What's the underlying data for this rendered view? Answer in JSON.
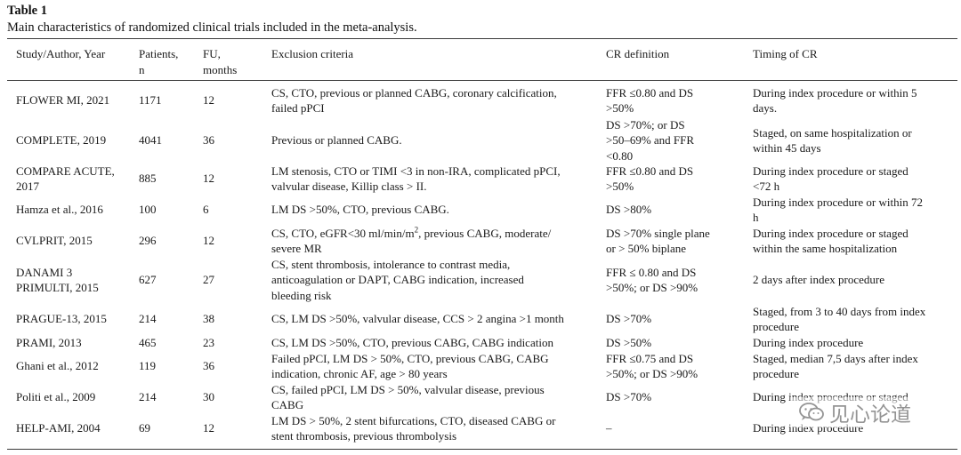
{
  "table": {
    "label": "Table 1",
    "caption": "Main characteristics of randomized clinical trials included in the meta-analysis.",
    "headers": {
      "study": "Study/Author, Year",
      "patients": [
        "Patients,",
        "n"
      ],
      "fu": [
        "FU,",
        "months"
      ],
      "exclusion": "Exclusion criteria",
      "cr_definition": "CR definition",
      "timing": "Timing of CR"
    },
    "rows": [
      {
        "study": [
          "FLOWER MI, 2021"
        ],
        "patients": "1171",
        "fu": "12",
        "exclusion": [
          "CS, CTO, previous or planned CABG, coronary calcification,",
          "failed pPCI"
        ],
        "cr": [
          "FFR ≤0.80 and DS",
          ">50%"
        ],
        "timing": [
          "During index procedure or within 5",
          "days."
        ]
      },
      {
        "study": [
          "COMPLETE, 2019"
        ],
        "patients": "4041",
        "fu": "36",
        "exclusion": [
          "Previous or planned CABG."
        ],
        "cr": [
          "DS >70%; or DS",
          ">50–69% and FFR",
          "<0.80"
        ],
        "timing": [
          "Staged, on same hospitalization or",
          "within 45 days"
        ]
      },
      {
        "study": [
          "COMPARE ACUTE,",
          "2017"
        ],
        "patients": "885",
        "fu": "12",
        "exclusion": [
          "LM stenosis, CTO or TIMI <3 in non-IRA, complicated pPCI,",
          "valvular disease, Killip class > II."
        ],
        "cr": [
          "FFR ≤0.80 and DS",
          ">50%"
        ],
        "timing": [
          "During index procedure or staged",
          "<72 h"
        ]
      },
      {
        "study": [
          "Hamza et al., 2016"
        ],
        "patients": "100",
        "fu": "6",
        "exclusion": [
          "LM DS >50%, CTO, previous CABG."
        ],
        "cr": [
          "DS >80%"
        ],
        "timing": [
          "During index procedure or within 72",
          "h"
        ]
      },
      {
        "study": [
          "CVLPRIT, 2015"
        ],
        "patients": "296",
        "fu": "12",
        "exclusion_main": "CS, CTO, eGFR<30 ml/min/m",
        "exclusion_sup": "2",
        "exclusion_rest": ", previous CABG, moderate/",
        "exclusion_line2": "severe MR",
        "cr": [
          "DS >70% single plane",
          "or > 50% biplane"
        ],
        "timing": [
          "During index procedure or staged",
          "within the same hospitalization"
        ]
      },
      {
        "study": [
          "DANAMI 3",
          "PRIMULTI, 2015"
        ],
        "patients": "627",
        "fu": "27",
        "exclusion": [
          "CS, stent thrombosis, intolerance to contrast media,",
          "anticoagulation or DAPT, CABG indication, increased",
          "bleeding risk"
        ],
        "cr": [
          "FFR ≤ 0.80 and DS",
          ">50%; or DS >90%"
        ],
        "timing": [
          "2 days after index procedure"
        ]
      },
      {
        "study": [
          "PRAGUE-13, 2015"
        ],
        "patients": "214",
        "fu": "38",
        "exclusion": [
          "CS, LM DS >50%, valvular disease, CCS > 2 angina >1 month"
        ],
        "cr": [
          "DS >70%"
        ],
        "timing": [
          "Staged, from 3 to 40 days from index",
          "procedure"
        ]
      },
      {
        "study": [
          "PRAMI, 2013"
        ],
        "patients": "465",
        "fu": "23",
        "exclusion": [
          "CS, LM DS >50%, CTO, previous CABG, CABG indication"
        ],
        "cr": [
          "DS >50%"
        ],
        "timing": [
          "During index procedure"
        ]
      },
      {
        "study": [
          "Ghani et al., 2012"
        ],
        "patients": "119",
        "fu": "36",
        "exclusion": [
          "Failed pPCI, LM DS > 50%, CTO, previous CABG, CABG",
          "indication, chronic AF, age > 80 years"
        ],
        "cr": [
          "FFR ≤0.75 and DS",
          ">50%; or DS >90%"
        ],
        "timing": [
          "Staged, median 7,5 days after index",
          "procedure"
        ]
      },
      {
        "study": [
          "Politi et al., 2009"
        ],
        "patients": "214",
        "fu": "30",
        "exclusion": [
          "CS, failed pPCI, LM DS > 50%, valvular disease, previous",
          "CABG"
        ],
        "cr": [
          "DS >70%"
        ],
        "timing": [
          "During index procedure or staged"
        ]
      },
      {
        "study": [
          "HELP-AMI, 2004"
        ],
        "patients": "69",
        "fu": "12",
        "exclusion": [
          "LM DS > 50%, 2 stent bifurcations, CTO, diseased CABG or",
          "stent thrombosis, previous thrombolysis"
        ],
        "cr": [
          "–"
        ],
        "timing": [
          "During index procedure"
        ]
      }
    ]
  },
  "watermark": {
    "text": "见心论道",
    "icon": "wechat-icon"
  }
}
